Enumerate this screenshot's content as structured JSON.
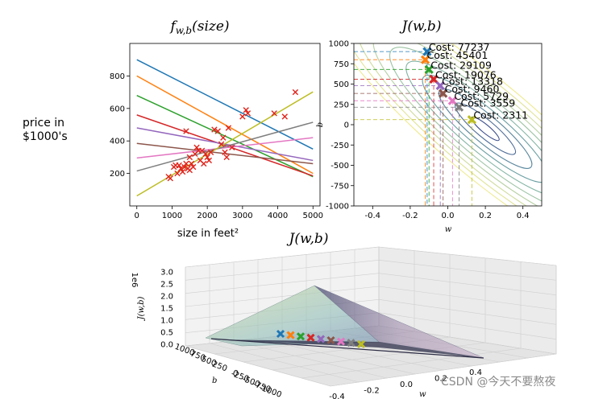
{
  "ylabel_left": [
    "price in",
    "$1000's"
  ],
  "chart_data": [
    {
      "type": "line+scatter",
      "title": "f_w,b(size)",
      "xlabel": "size in feet²",
      "xlim": [
        -200,
        5200
      ],
      "ylim": [
        0,
        1000
      ],
      "xticks": [
        0,
        1000,
        2000,
        3000,
        4000,
        5000
      ],
      "yticks": [
        200,
        400,
        600,
        800
      ],
      "data_points": [
        [
          900,
          180
        ],
        [
          950,
          170
        ],
        [
          1050,
          240
        ],
        [
          1100,
          250
        ],
        [
          1150,
          200
        ],
        [
          1200,
          250
        ],
        [
          1250,
          230
        ],
        [
          1300,
          210
        ],
        [
          1350,
          240
        ],
        [
          1400,
          260
        ],
        [
          1450,
          230
        ],
        [
          1500,
          300
        ],
        [
          1550,
          260
        ],
        [
          1600,
          240
        ],
        [
          1650,
          320
        ],
        [
          1700,
          360
        ],
        [
          1800,
          280
        ],
        [
          1850,
          340
        ],
        [
          1900,
          260
        ],
        [
          1950,
          320
        ],
        [
          2000,
          300
        ],
        [
          2050,
          280
        ],
        [
          2100,
          330
        ],
        [
          2200,
          470
        ],
        [
          2300,
          460
        ],
        [
          2400,
          380
        ],
        [
          2450,
          420
        ],
        [
          2500,
          330
        ],
        [
          2550,
          300
        ],
        [
          2600,
          480
        ],
        [
          2700,
          360
        ],
        [
          3000,
          550
        ],
        [
          3100,
          590
        ],
        [
          3150,
          570
        ],
        [
          3900,
          570
        ],
        [
          4200,
          550
        ],
        [
          4500,
          700
        ],
        [
          1400,
          460
        ],
        [
          1750,
          340
        ],
        [
          1500,
          220
        ]
      ],
      "lines": [
        {
          "color": "#1f77b4",
          "w": -0.11,
          "b": 900
        },
        {
          "color": "#ff7f0e",
          "w": -0.12,
          "b": 800
        },
        {
          "color": "#2ca02c",
          "w": -0.1,
          "b": 680
        },
        {
          "color": "#d62728",
          "w": -0.075,
          "b": 560
        },
        {
          "color": "#9467bd",
          "w": -0.04,
          "b": 480
        },
        {
          "color": "#8c564b",
          "w": -0.025,
          "b": 385
        },
        {
          "color": "#e377c2",
          "w": 0.025,
          "b": 295
        },
        {
          "color": "#7f7f7f",
          "w": 0.06,
          "b": 215
        },
        {
          "color": "#bcbd22",
          "w": 0.128,
          "b": 62
        }
      ]
    },
    {
      "type": "contour",
      "title": "J(w,b)",
      "xlabel": "w",
      "ylabel": "b",
      "xlim": [
        -0.5,
        0.5
      ],
      "ylim": [
        -1000,
        1000
      ],
      "xticks": [
        -0.4,
        -0.2,
        0.0,
        0.2,
        0.4
      ],
      "yticks": [
        -1000,
        -750,
        -500,
        -250,
        0,
        250,
        500,
        750,
        1000
      ],
      "path": [
        {
          "w": -0.11,
          "b": 900,
          "cost": "Cost: 77237",
          "color": "#1f77b4"
        },
        {
          "w": -0.12,
          "b": 800,
          "cost": "Cost: 45401",
          "color": "#ff7f0e"
        },
        {
          "w": -0.1,
          "b": 680,
          "cost": "Cost: 29109",
          "color": "#2ca02c"
        },
        {
          "w": -0.075,
          "b": 560,
          "cost": "Cost: 19076",
          "color": "#d62728"
        },
        {
          "w": -0.04,
          "b": 480,
          "cost": "Cost: 13318",
          "color": "#9467bd"
        },
        {
          "w": -0.025,
          "b": 385,
          "cost": "Cost: 9460",
          "color": "#8c564b"
        },
        {
          "w": 0.025,
          "b": 295,
          "cost": "Cost: 5729",
          "color": "#e377c2"
        },
        {
          "w": 0.06,
          "b": 215,
          "cost": "Cost: 3559",
          "color": "#7f7f7f"
        },
        {
          "w": 0.128,
          "b": 62,
          "cost": "Cost: 2311",
          "color": "#bcbd22"
        }
      ]
    },
    {
      "type": "surface3d",
      "title": "J(w,b)",
      "xlabel": "w",
      "ylabel": "b",
      "zlabel": "J(w,b)",
      "zscale": "1e6",
      "zticks": [
        "0.0",
        "0.5",
        "1.0",
        "1.5",
        "2.0",
        "2.5",
        "3.0"
      ],
      "wticks": [
        "-0.4",
        "-0.2",
        "0.0",
        "0.2",
        "0.4"
      ],
      "bticks": [
        "1000",
        "750",
        "500",
        "250",
        "0",
        "-250",
        "-500",
        "-750",
        "-1000"
      ]
    }
  ],
  "watermark": "CSDN @今天不要熬夜"
}
